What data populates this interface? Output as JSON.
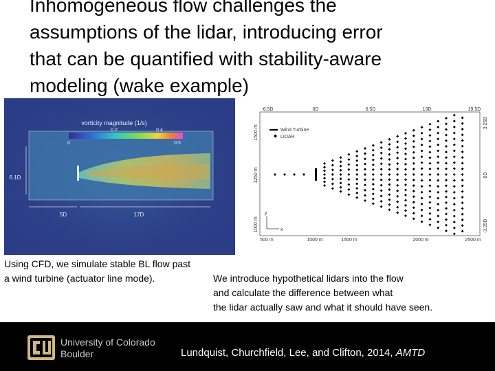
{
  "title": {
    "lines": [
      "Inhomogeneous flow challenges the",
      "assumptions of the lidar, introducing error",
      "that can be quantified with stability-aware",
      "modeling (wake example)"
    ]
  },
  "cfd_figure": {
    "colorbar_title": "vorticity magnitude (1/s)",
    "ticks_top": [
      "0.2",
      "0.4"
    ],
    "ticks_bottom": [
      "0",
      "0.5"
    ],
    "label_height": "6.1D",
    "label_upstream": "5D",
    "label_downstream": "17D"
  },
  "layout_figure": {
    "top_labels": [
      "-6.5D",
      "0D",
      "6.5D",
      "13D",
      "19.5D"
    ],
    "right_labels": [
      "3.25D",
      "0D",
      "-3.25D"
    ],
    "left_labels": [
      "1500 m",
      "1250 m",
      "1000 m"
    ],
    "bottom_labels": [
      "500 m",
      "1000 m",
      "1500 m",
      "2000 m",
      "2500 m"
    ],
    "legend_turbine": "Wind Turbine",
    "legend_lidar": "LIDAR",
    "axis_x": "x",
    "axis_y": "y"
  },
  "captions": {
    "line1": "Using CFD, we simulate stable BL flow past",
    "line2": "a wind turbine (actuator line mode).",
    "line3": "We introduce hypothetical lidars into the flow",
    "line4": "and calculate the difference between what",
    "line5": "the lidar actually saw and what it should have seen."
  },
  "footer": {
    "university_line1": "University of Colorado",
    "university_line2": "Boulder",
    "citation": "Lundquist, Churchfield, Lee, and Clifton, 2014, ",
    "citation_journal": "AMTD"
  },
  "colors": {
    "footer_bg": "#000000",
    "logo_gold": "#cfb87c",
    "cfd_background": "#2a3f8a"
  }
}
